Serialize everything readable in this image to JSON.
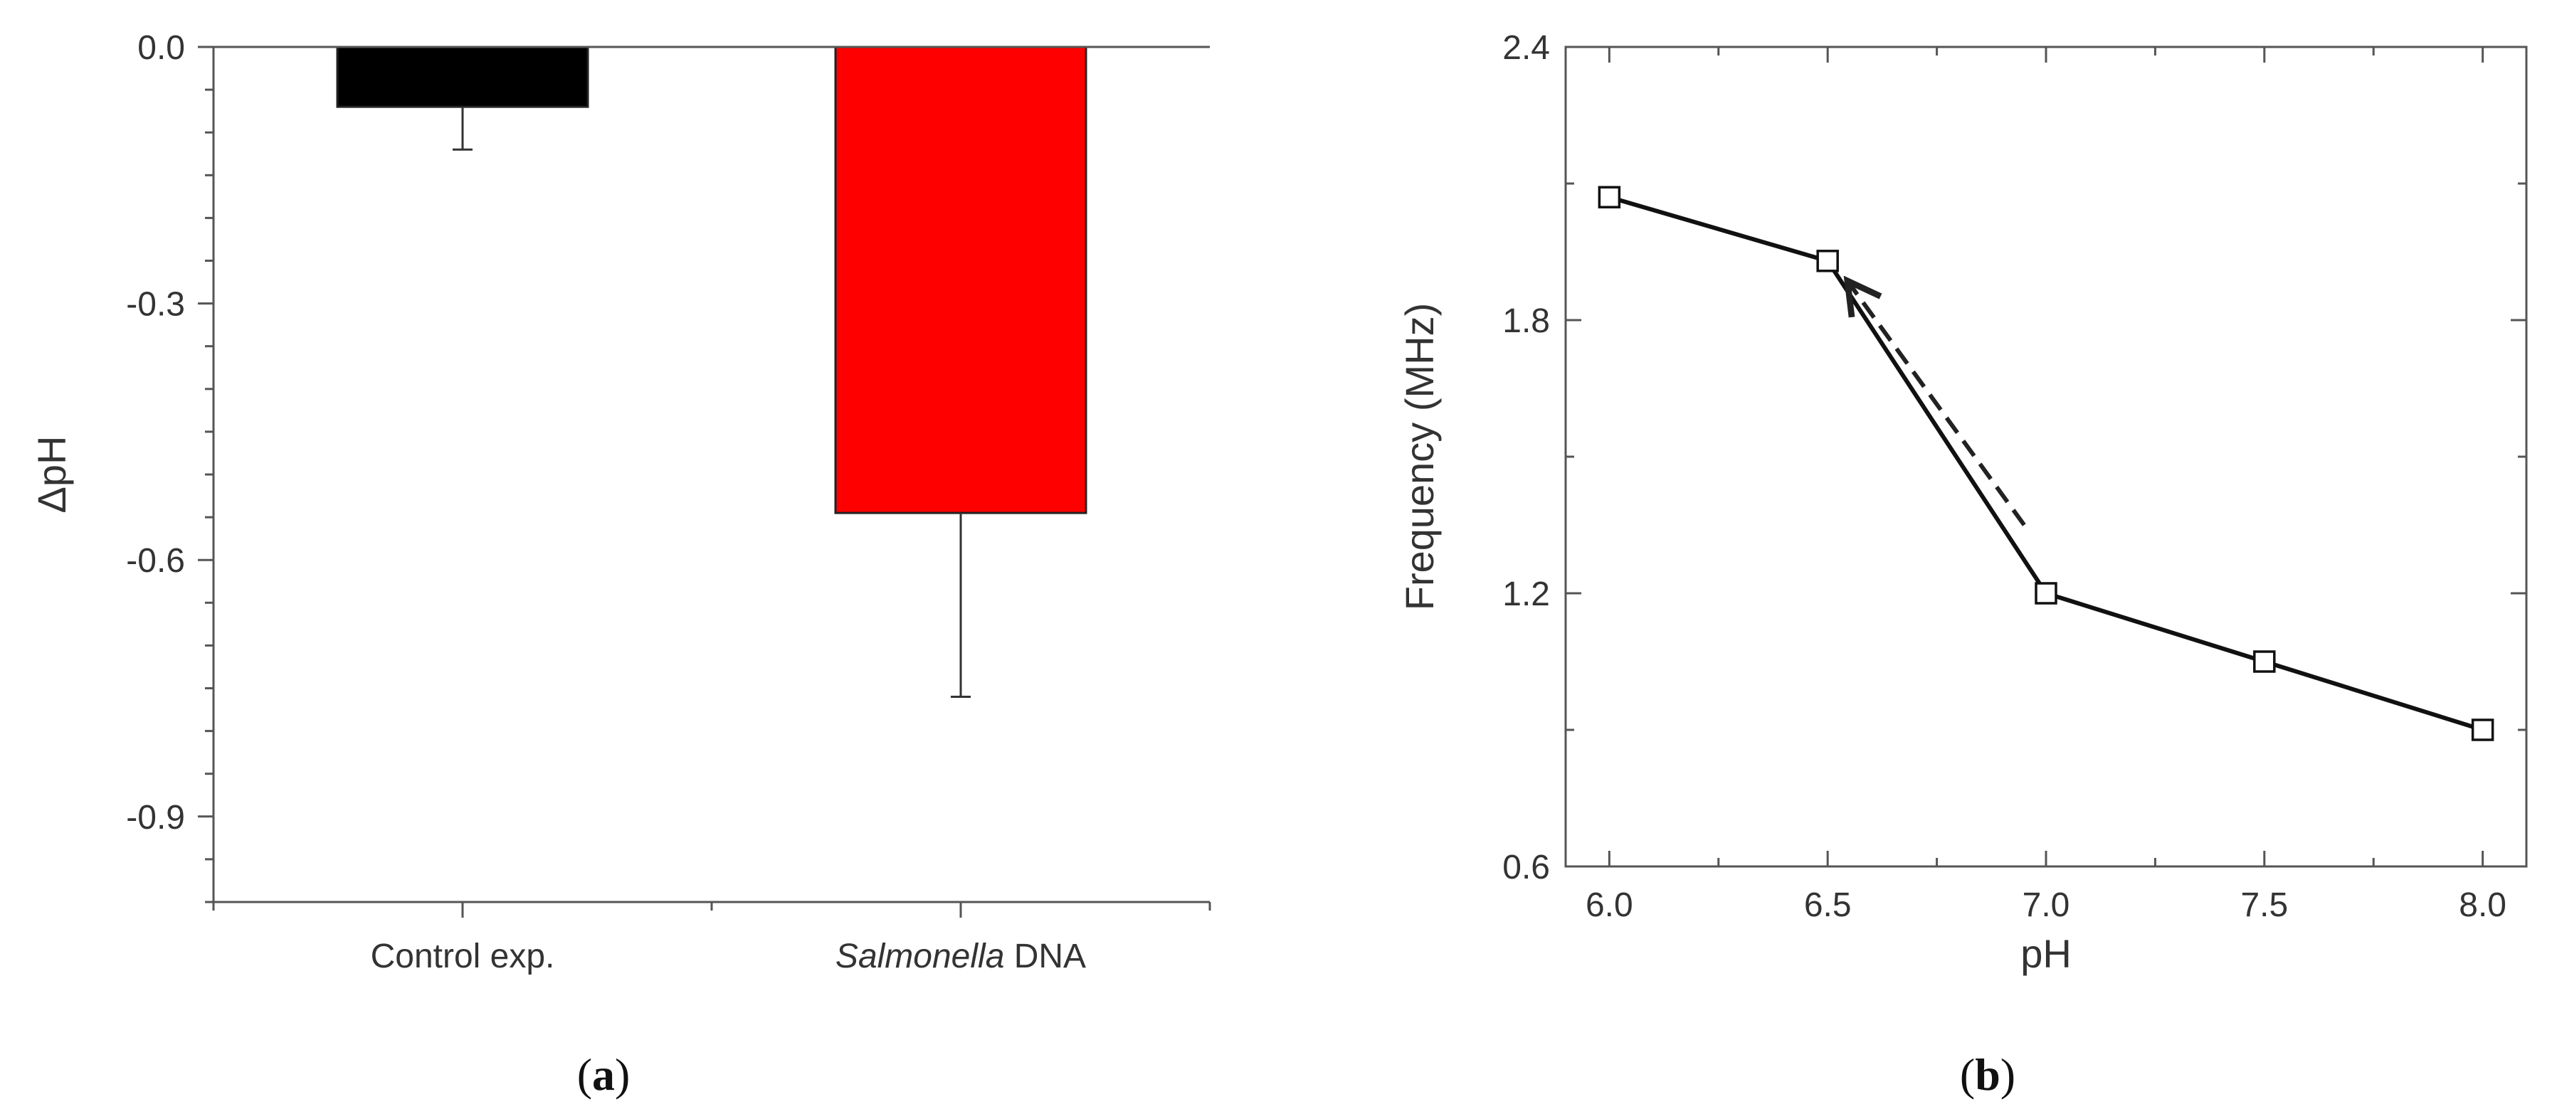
{
  "chart_data": [
    {
      "type": "bar",
      "panel_label": {
        "open": "(",
        "letter": "a",
        "close": ")"
      },
      "categories": [
        {
          "parts": [
            "Control exp."
          ]
        },
        {
          "parts": [
            "Salmonella",
            " DNA"
          ]
        }
      ],
      "values": [
        -0.07,
        -0.545
      ],
      "errors": [
        0.05,
        0.215
      ],
      "colors": [
        "#000000",
        "#ff0000"
      ],
      "xlabel": "",
      "ylabel": "ΔpH",
      "ylim": [
        -1.0,
        0.0
      ],
      "yticks": [
        0.0,
        -0.3,
        -0.6,
        -0.9
      ],
      "ytick_labels": [
        "0.0",
        "-0.3",
        "-0.6",
        "-0.9"
      ],
      "grid": false
    },
    {
      "type": "line",
      "panel_label": {
        "open": "(",
        "letter": "b",
        "close": ")"
      },
      "x": [
        6.0,
        6.5,
        7.0,
        7.5,
        8.0
      ],
      "y": [
        2.07,
        1.93,
        1.2,
        1.05,
        0.9
      ],
      "yerr": [
        0.01,
        0.015,
        0.015,
        0.02,
        0.02
      ],
      "xlabel": "pH",
      "ylabel": "Frequency (MHz)",
      "xlim": [
        5.9,
        8.1
      ],
      "ylim": [
        0.6,
        2.4
      ],
      "xticks": [
        6.0,
        6.5,
        7.0,
        7.5,
        8.0
      ],
      "xtick_labels": [
        "6.0",
        "6.5",
        "7.0",
        "7.5",
        "8.0"
      ],
      "yticks": [
        0.6,
        1.2,
        1.8,
        2.4
      ],
      "ytick_labels": [
        "0.6",
        "1.2",
        "1.8",
        "2.4"
      ],
      "annotation": {
        "type": "dashed-arrow",
        "from": [
          6.95,
          1.35
        ],
        "to": [
          6.55,
          1.88
        ]
      },
      "grid": false
    }
  ]
}
